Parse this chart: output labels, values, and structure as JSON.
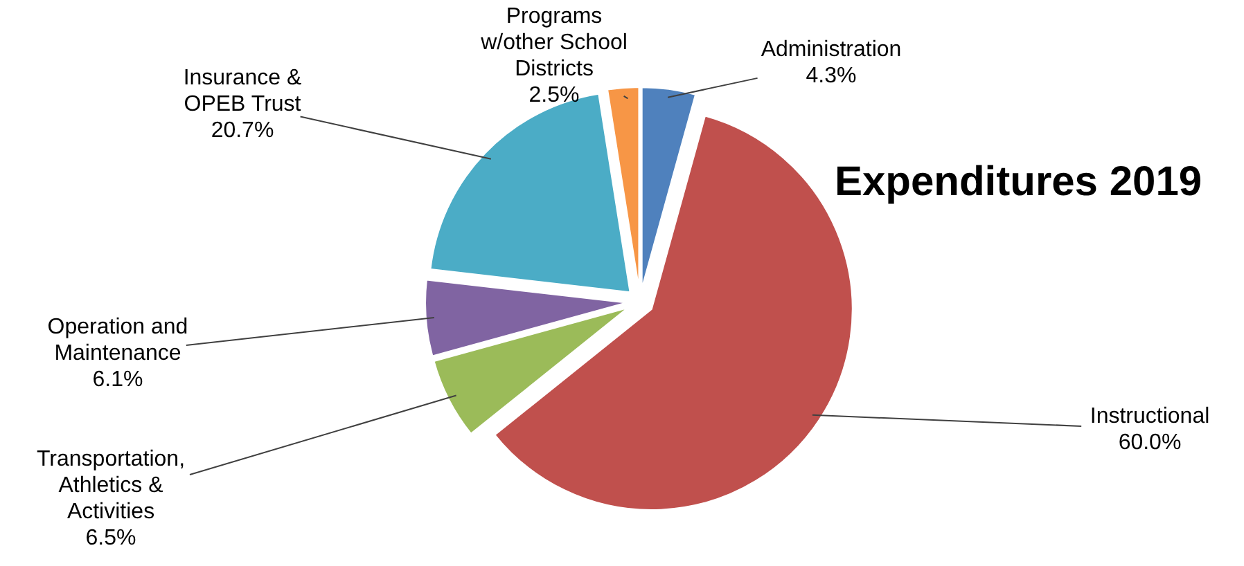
{
  "chart_data": {
    "type": "pie",
    "title": "Expenditures 2019",
    "categories": [
      "Administration",
      "Instructional",
      "Transportation,\nAthletics &\nActivities",
      "Operation and\nMaintenance",
      "Insurance &\nOPEB Trust",
      "Programs\nw/other School\nDistricts"
    ],
    "values": [
      4.3,
      60.0,
      6.5,
      6.1,
      20.7,
      2.5
    ],
    "value_labels": [
      "4.3%",
      "60.0%",
      "6.5%",
      "6.1%",
      "20.7%",
      "2.5%"
    ],
    "colors": [
      "#4f81bd",
      "#c0504d",
      "#9bbb59",
      "#8064a2",
      "#4bacc6",
      "#f79646"
    ]
  }
}
